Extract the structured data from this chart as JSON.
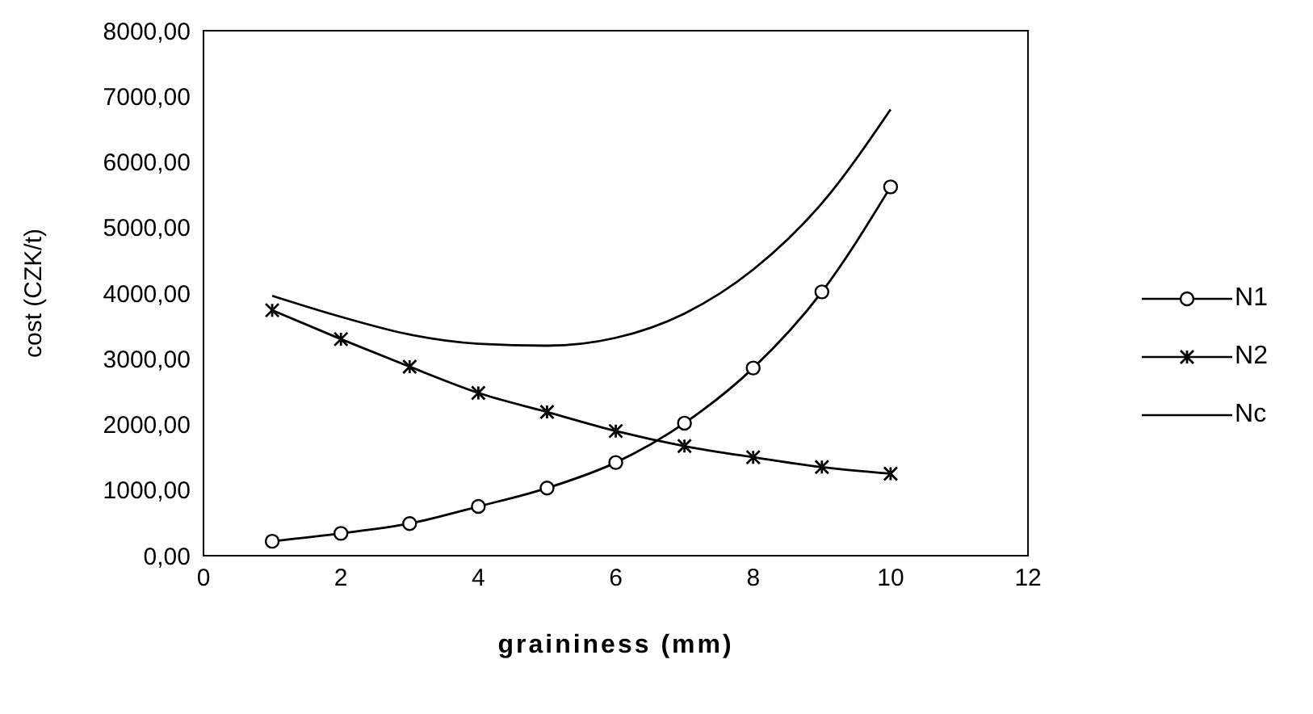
{
  "chart_data": {
    "type": "line",
    "xlabel": "graininess (mm)",
    "ylabel": "cost (CZK/t)",
    "x": [
      1,
      2,
      3,
      4,
      5,
      6,
      7,
      8,
      9,
      10
    ],
    "series": [
      {
        "name": "N1",
        "color": "#000000",
        "marker": "circle",
        "values": [
          220,
          340,
          490,
          750,
          1030,
          1420,
          2020,
          2860,
          4020,
          5620
        ]
      },
      {
        "name": "N2",
        "color": "#000000",
        "marker": "cross",
        "values": [
          3740,
          3300,
          2880,
          2480,
          2190,
          1900,
          1670,
          1500,
          1350,
          1250
        ]
      },
      {
        "name": "Nc",
        "color": "#000000",
        "marker": "none",
        "values": [
          3960,
          3640,
          3370,
          3230,
          3200,
          3320,
          3690,
          4360,
          5370,
          6800
        ]
      }
    ],
    "xlim": [
      0,
      12
    ],
    "xticks": [
      0,
      2,
      4,
      6,
      8,
      10,
      12
    ],
    "ylim": [
      0,
      8000
    ],
    "yticks": [
      {
        "value": 0,
        "label": "0,00"
      },
      {
        "value": 1000,
        "label": "1000,00"
      },
      {
        "value": 2000,
        "label": "2000,00"
      },
      {
        "value": 3000,
        "label": "3000,00"
      },
      {
        "value": 4000,
        "label": "4000,00"
      },
      {
        "value": 5000,
        "label": "5000,00"
      },
      {
        "value": 6000,
        "label": "6000,00"
      },
      {
        "value": 7000,
        "label": "7000,00"
      },
      {
        "value": 8000,
        "label": "8000,00"
      }
    ],
    "grid": false,
    "legend": "right",
    "line_style": "solid"
  }
}
